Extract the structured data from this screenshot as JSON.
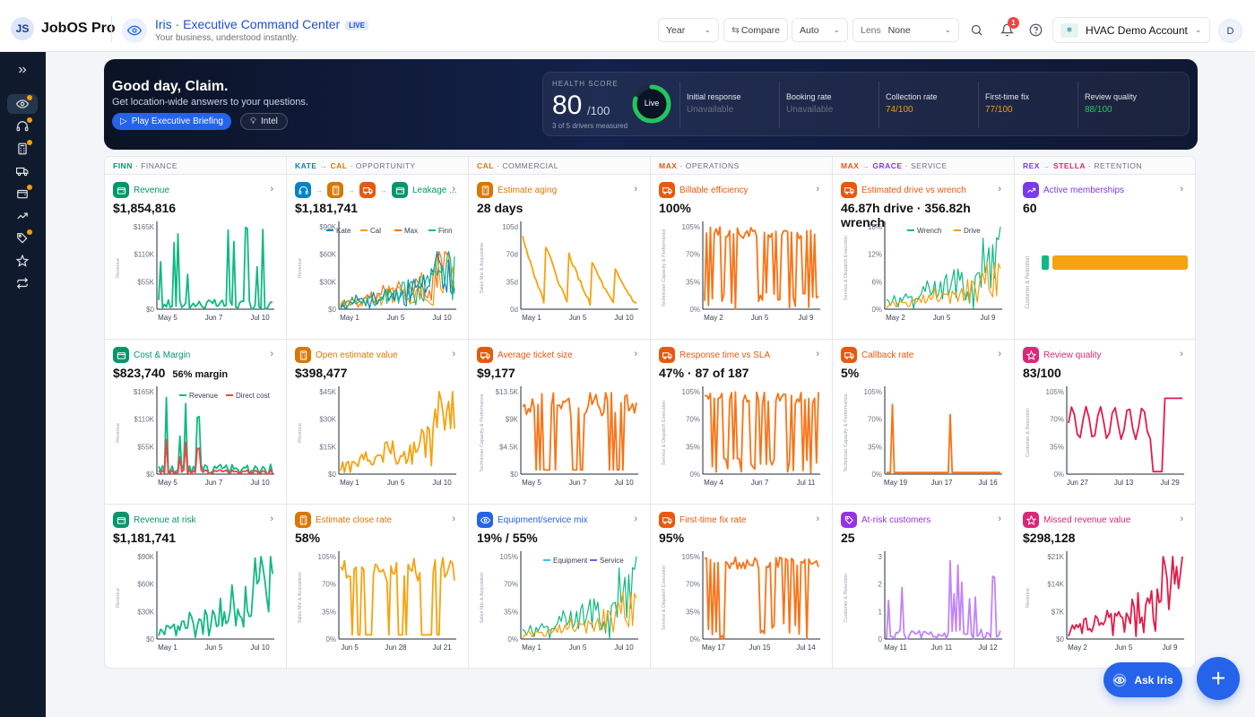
{
  "app": {
    "name": "JobOS Pro",
    "logo_text": "JS"
  },
  "iris": {
    "title": "Iris · Executive Command Center",
    "badge": "LIVE",
    "subtitle": "Your business, understood instantly."
  },
  "controls": {
    "period": "Year",
    "compare": "Compare",
    "mode": "Auto",
    "lens_label": "Lens",
    "lens_value": "None"
  },
  "notifications": {
    "count": "1"
  },
  "account": {
    "name": "HVAC Demo Account"
  },
  "user": {
    "initial": "D"
  },
  "sidebar": {
    "items": [
      {
        "icon": "expand-icon"
      },
      {
        "icon": "eye-icon",
        "active": true,
        "dot": true
      },
      {
        "icon": "headset-icon",
        "dot": true
      },
      {
        "icon": "calculator-icon",
        "dot": true
      },
      {
        "icon": "truck-icon"
      },
      {
        "icon": "wallet-icon",
        "dot": true
      },
      {
        "icon": "trending-icon"
      },
      {
        "icon": "tag-icon",
        "dot": true
      },
      {
        "icon": "star-icon"
      },
      {
        "icon": "repeat-icon"
      }
    ]
  },
  "hero": {
    "greeting": "Good day, Claim.",
    "subtitle": "Get location-wide answers to your questions.",
    "brief_button": "Play Executive Briefing",
    "intel_button": "Intel",
    "health": {
      "label": "HEALTH SCORE",
      "score": "80",
      "max": "/100",
      "drivers_measured": "3 of 5 drivers measured",
      "status": "Live",
      "score_value": 80,
      "drivers": [
        {
          "label": "Initial response",
          "value": "Unavailable",
          "color": "#6b7280"
        },
        {
          "label": "Booking rate",
          "value": "Unavailable",
          "color": "#6b7280"
        },
        {
          "label": "Collection rate",
          "value": "74/100",
          "color": "#f59e0b"
        },
        {
          "label": "First-time fix",
          "value": "77/100",
          "color": "#f59e0b"
        },
        {
          "label": "Review quality",
          "value": "88/100",
          "color": "#22c55e"
        }
      ]
    }
  },
  "columns": [
    {
      "agents": [
        "FINN"
      ],
      "area": "FINANCE",
      "colors": [
        "#059669"
      ]
    },
    {
      "agents": [
        "KATE",
        "CAL"
      ],
      "area": "OPPORTUNITY",
      "colors": [
        "#0284c7",
        "#d97706"
      ]
    },
    {
      "agents": [
        "CAL"
      ],
      "area": "COMMERCIAL",
      "colors": [
        "#d97706"
      ]
    },
    {
      "agents": [
        "MAX"
      ],
      "area": "OPERATIONS",
      "colors": [
        "#ea580c"
      ]
    },
    {
      "agents": [
        "MAX",
        "GRACE"
      ],
      "area": "SERVICE",
      "colors": [
        "#ea580c",
        "#7c3aed"
      ]
    },
    {
      "agents": [
        "REX",
        "STELLA"
      ],
      "area": "RETENTION",
      "colors": [
        "#7c3aed",
        "#db2777"
      ]
    }
  ],
  "cards": [
    {
      "title": "Revenue",
      "value": "$1,854,816",
      "icon": "wallet-icon",
      "color": "#059669",
      "chart_type": "line",
      "ylabel": "Revenue",
      "yticks": [
        "$165K",
        "$110K",
        "$55K",
        "$0"
      ],
      "xticks": [
        "May 5",
        "Jun 7",
        "Jul 10"
      ]
    },
    {
      "title": "Leakage ...",
      "value": "$1,181,741",
      "icon": "wallet-icon",
      "color": "#059669",
      "extra_icons": [
        "#0284c7",
        "#d97706",
        "#ea580c",
        "#059669"
      ],
      "chart_type": "multiline",
      "ylabel": "Revenue",
      "yticks": [
        "$90K",
        "$60K",
        "$30K",
        "$0"
      ],
      "xticks": [
        "May 1",
        "Jun 5",
        "Jul 10"
      ],
      "legend": [
        {
          "name": "Kate",
          "color": "#0284c7"
        },
        {
          "name": "Cal",
          "color": "#f59e0b"
        },
        {
          "name": "Max",
          "color": "#f97316"
        },
        {
          "name": "Finn",
          "color": "#10b981"
        }
      ]
    },
    {
      "title": "Estimate aging",
      "value": "28 days",
      "icon": "calculator-icon",
      "color": "#d97706",
      "chart_type": "line",
      "ylabel": "Sales Mix & Acquisition",
      "yticks": [
        "105d",
        "70d",
        "35d",
        "0d"
      ],
      "xticks": [
        "May 1",
        "Jun 5",
        "Jul 10"
      ]
    },
    {
      "title": "Billable efficiency",
      "value": "100%",
      "icon": "truck-icon",
      "color": "#ea580c",
      "chart_type": "line",
      "ylabel": "Technician Capacity & Performance",
      "yticks": [
        "105%",
        "70%",
        "35%",
        "0%"
      ],
      "xticks": [
        "May 2",
        "Jun 5",
        "Jul 9"
      ]
    },
    {
      "title": "Estimated drive vs wrench",
      "value": "46.87h drive · 356.82h wrench",
      "icon": "truck-icon",
      "color": "#ea580c",
      "chart_type": "dual",
      "ylabel": "Service & Dispatch Execution",
      "yticks": [
        "18%",
        "12%",
        "6%",
        "0%"
      ],
      "xticks": [
        "May 2",
        "Jun 5",
        "Jul 9"
      ],
      "legend": [
        {
          "name": "Wrench",
          "color": "#10b981"
        },
        {
          "name": "Drive",
          "color": "#f59e0b"
        }
      ]
    },
    {
      "title": "Active memberships",
      "value": "60",
      "icon": "trending-icon",
      "color": "#7c3aed",
      "chart_type": "hbar",
      "ylabel": "Customer & Retention",
      "yticks": [],
      "xticks": []
    },
    {
      "title": "Cost & Margin",
      "value": "$823,740",
      "value_sub": "56% margin",
      "icon": "wallet-icon",
      "color": "#059669",
      "chart_type": "dual",
      "ylabel": "Revenue",
      "yticks": [
        "$165K",
        "$110K",
        "$55K",
        "$0"
      ],
      "xticks": [
        "May 5",
        "Jun 7",
        "Jul 10"
      ],
      "legend": [
        {
          "name": "Revenue",
          "color": "#10b981"
        },
        {
          "name": "Direct cost",
          "color": "#ef4444"
        }
      ]
    },
    {
      "title": "Open estimate value",
      "value": "$398,477",
      "icon": "calculator-icon",
      "color": "#d97706",
      "chart_type": "line",
      "ylabel": "Revenue",
      "yticks": [
        "$45K",
        "$30K",
        "$15K",
        "$0"
      ],
      "xticks": [
        "May 1",
        "Jun 5",
        "Jul 10"
      ]
    },
    {
      "title": "Average ticket size",
      "value": "$9,177",
      "icon": "truck-icon",
      "color": "#ea580c",
      "chart_type": "line",
      "ylabel": "Technician Capacity & Performance",
      "yticks": [
        "$13.5K",
        "$9K",
        "$4.5K",
        "$0"
      ],
      "xticks": [
        "May 5",
        "Jun 7",
        "Jul 10"
      ]
    },
    {
      "title": "Response time vs SLA",
      "value": "47% · 87 of 187",
      "icon": "truck-icon",
      "color": "#ea580c",
      "chart_type": "line",
      "ylabel": "Service & Dispatch Execution",
      "yticks": [
        "105%",
        "70%",
        "35%",
        "0%"
      ],
      "xticks": [
        "May 4",
        "Jun 7",
        "Jul 11"
      ]
    },
    {
      "title": "Callback rate",
      "value": "5%",
      "icon": "truck-icon",
      "color": "#ea580c",
      "chart_type": "line",
      "ylabel": "Technician Capacity & Performance",
      "yticks": [
        "105%",
        "70%",
        "35%",
        "0%"
      ],
      "xticks": [
        "May 19",
        "Jun 17",
        "Jul 16"
      ]
    },
    {
      "title": "Review quality",
      "value": "83/100",
      "icon": "star-icon",
      "color": "#db2777",
      "chart_type": "line",
      "ylabel": "Customer & Retention",
      "yticks": [
        "105%",
        "70%",
        "35%",
        "0%"
      ],
      "xticks": [
        "Jun 27",
        "Jul 13",
        "Jul 29"
      ]
    },
    {
      "title": "Revenue at risk",
      "value": "$1,181,741",
      "icon": "wallet-icon",
      "color": "#059669",
      "chart_type": "line",
      "ylabel": "Revenue",
      "yticks": [
        "$90K",
        "$60K",
        "$30K",
        "$0"
      ],
      "xticks": [
        "May 1",
        "Jun 5",
        "Jul 10"
      ]
    },
    {
      "title": "Estimate close rate",
      "value": "58%",
      "icon": "calculator-icon",
      "color": "#d97706",
      "chart_type": "line",
      "ylabel": "Sales Mix & Acquisition",
      "yticks": [
        "105%",
        "70%",
        "35%",
        "0%"
      ],
      "xticks": [
        "Jun 5",
        "Jun 28",
        "Jul 21"
      ]
    },
    {
      "title": "Equipment/service mix",
      "value": "19% / 55%",
      "icon": "eye-icon",
      "color": "#2563eb",
      "chart_type": "dual",
      "ylabel": "Sales Mix & Acquisition",
      "yticks": [
        "105%",
        "70%",
        "35%",
        "0%"
      ],
      "xticks": [
        "May 1",
        "Jun 5",
        "Jul 10"
      ],
      "legend": [
        {
          "name": "Equipment",
          "color": "#38bdf8"
        },
        {
          "name": "Service",
          "color": "#6366f1"
        }
      ]
    },
    {
      "title": "First-time fix rate",
      "value": "95%",
      "icon": "truck-icon",
      "color": "#ea580c",
      "chart_type": "line",
      "ylabel": "Service & Dispatch Execution",
      "yticks": [
        "105%",
        "70%",
        "35%",
        "0%"
      ],
      "xticks": [
        "May 17",
        "Jun 15",
        "Jul 14"
      ]
    },
    {
      "title": "At-risk customers",
      "value": "25",
      "icon": "tag-icon",
      "color": "#9333ea",
      "chart_type": "line",
      "ylabel": "Customer & Retention",
      "yticks": [
        "3",
        "2",
        "1",
        "0"
      ],
      "xticks": [
        "May 11",
        "Jun 11",
        "Jul 12"
      ]
    },
    {
      "title": "Missed revenue value",
      "value": "$298,128",
      "icon": "star-icon",
      "color": "#db2777",
      "chart_type": "line",
      "ylabel": "Revenue",
      "yticks": [
        "$21K",
        "$14K",
        "$7K",
        "$0"
      ],
      "xticks": [
        "May 2",
        "Jun 5",
        "Jul 9"
      ]
    }
  ],
  "ask_iris": {
    "label": "Ask Iris"
  },
  "fab": {
    "label": "+"
  }
}
